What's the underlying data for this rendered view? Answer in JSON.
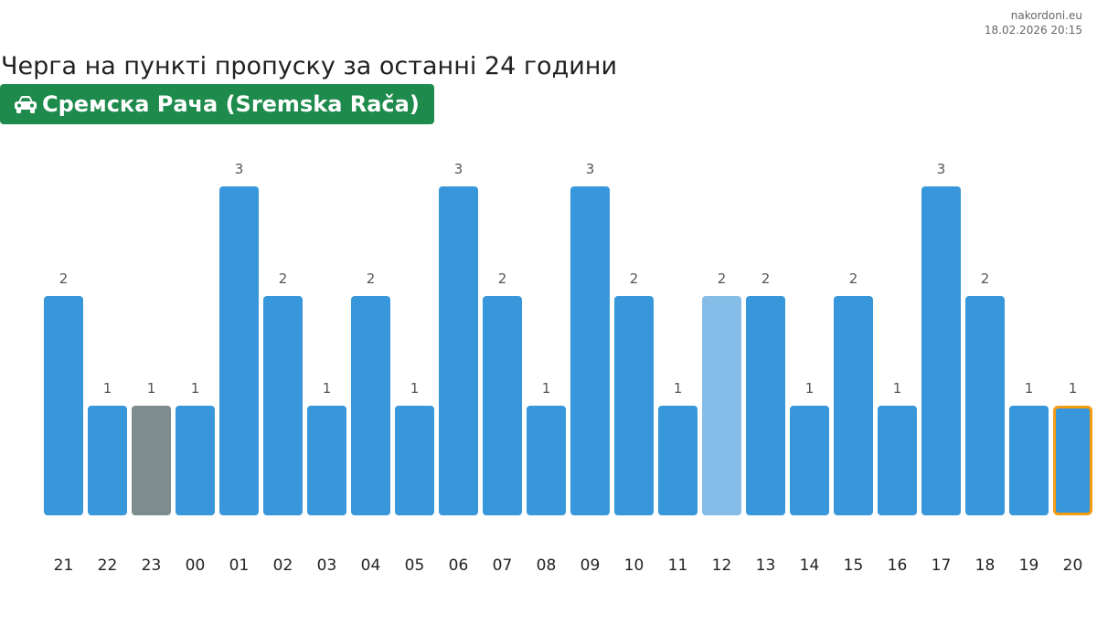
{
  "source": {
    "site": "nakordoni.eu",
    "timestamp": "18.02.2026 20:15"
  },
  "title": "Черга на пункті пропуску за останні 24 години",
  "checkpoint": {
    "name": "Сремска Рача (Sremska Rača)",
    "icon": "car-icon",
    "color": "#1e8a4c"
  },
  "colors": {
    "bar": "#3897da",
    "bar_gray": "#7f8c8d",
    "bar_light": "#85bde8",
    "highlight_border": "#f39c12",
    "label": "#555555",
    "tick": "#222222"
  },
  "chart_data": {
    "type": "bar",
    "categories": [
      "21",
      "22",
      "23",
      "00",
      "01",
      "02",
      "03",
      "04",
      "05",
      "06",
      "07",
      "08",
      "09",
      "10",
      "11",
      "12",
      "13",
      "14",
      "15",
      "16",
      "17",
      "18",
      "19",
      "20"
    ],
    "values": [
      2,
      1,
      1,
      1,
      3,
      2,
      1,
      2,
      1,
      3,
      2,
      1,
      3,
      2,
      1,
      2,
      2,
      1,
      2,
      1,
      3,
      2,
      1,
      1
    ],
    "bar_styles": [
      "normal",
      "normal",
      "gray",
      "normal",
      "normal",
      "normal",
      "normal",
      "normal",
      "normal",
      "normal",
      "normal",
      "normal",
      "normal",
      "normal",
      "normal",
      "light",
      "normal",
      "normal",
      "normal",
      "normal",
      "normal",
      "normal",
      "normal",
      "current"
    ],
    "ylim": [
      0,
      3
    ],
    "grid": false,
    "xlabel": "",
    "ylabel": ""
  }
}
